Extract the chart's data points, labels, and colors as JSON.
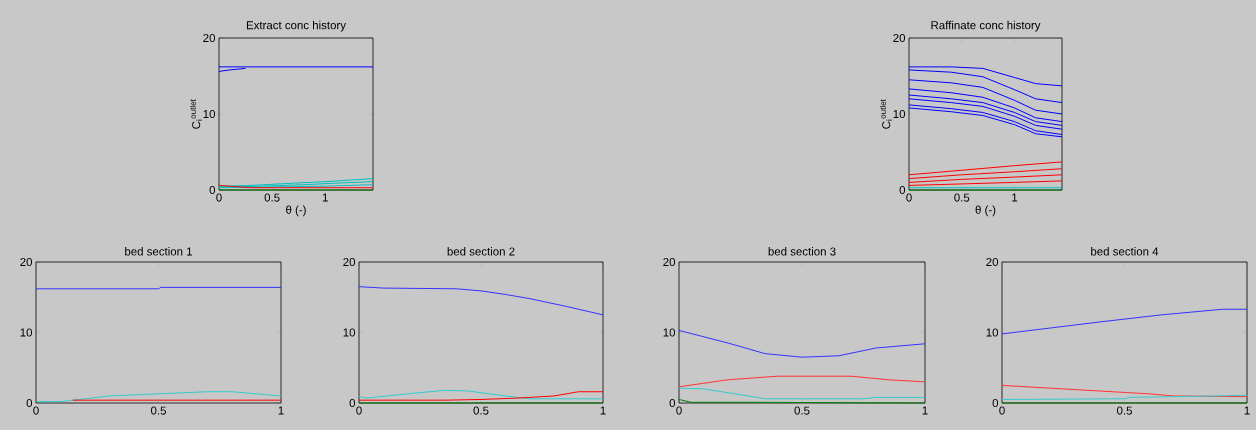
{
  "chart_data": [
    {
      "type": "line",
      "title": "Extract conc history",
      "xlabel": "θ (-)",
      "ylabel": "C$_{i}$$^{outlet}$",
      "xlim": [
        0,
        1.45
      ],
      "ylim": [
        0,
        20
      ],
      "xticks": [
        0,
        0.5,
        1
      ],
      "yticks": [
        0,
        10,
        20
      ],
      "series": [
        {
          "color": "#0000ff",
          "x": [
            0,
            0.3,
            1.45
          ],
          "values": [
            16.2,
            16.2,
            16.2
          ]
        },
        {
          "color": "#0000ff",
          "x": [
            0,
            0.1,
            0.25
          ],
          "values": [
            15.6,
            15.8,
            16.0
          ]
        },
        {
          "color": "#00bfbf",
          "x": [
            0,
            0.3,
            0.7,
            1.0,
            1.45
          ],
          "values": [
            0.5,
            0.6,
            0.9,
            1.1,
            1.5
          ]
        },
        {
          "color": "#00bfbf",
          "x": [
            0,
            0.4,
            0.8,
            1.1,
            1.45
          ],
          "values": [
            0.4,
            0.5,
            0.7,
            0.9,
            1.1
          ]
        },
        {
          "color": "#00bfbf",
          "x": [
            0,
            0.5,
            1.0,
            1.45
          ],
          "values": [
            0.3,
            0.4,
            0.5,
            0.7
          ]
        },
        {
          "color": "#ff0000",
          "x": [
            0,
            0.1,
            0.3,
            1.45
          ],
          "values": [
            0.6,
            0.5,
            0.3,
            0.3
          ]
        },
        {
          "color": "#008000",
          "x": [
            0,
            1.45
          ],
          "values": [
            0,
            0
          ]
        }
      ]
    },
    {
      "type": "line",
      "title": "Raffinate conc history",
      "xlabel": "θ (-)",
      "ylabel": "C$_{i}$$^{outlet}$",
      "xlim": [
        0,
        1.45
      ],
      "ylim": [
        0,
        20
      ],
      "xticks": [
        0,
        0.5,
        1
      ],
      "yticks": [
        0,
        10,
        20
      ],
      "series": [
        {
          "color": "#0000ff",
          "x": [
            0,
            0.4,
            0.7,
            1.0,
            1.2,
            1.45
          ],
          "values": [
            16.2,
            16.2,
            16.0,
            14.8,
            14.0,
            13.7
          ]
        },
        {
          "color": "#0000ff",
          "x": [
            0,
            0.4,
            0.7,
            1.0,
            1.2,
            1.45
          ],
          "values": [
            15.8,
            15.5,
            14.9,
            13.2,
            12.0,
            11.5
          ]
        },
        {
          "color": "#0000ff",
          "x": [
            0,
            0.4,
            0.7,
            1.0,
            1.2,
            1.45
          ],
          "values": [
            14.5,
            14.1,
            13.5,
            11.8,
            10.5,
            10.0
          ]
        },
        {
          "color": "#0000ff",
          "x": [
            0,
            0.4,
            0.7,
            1.0,
            1.2,
            1.45
          ],
          "values": [
            13.3,
            12.8,
            12.2,
            10.8,
            9.5,
            9.0
          ]
        },
        {
          "color": "#0000ff",
          "x": [
            0,
            0.4,
            0.7,
            1.0,
            1.2,
            1.45
          ],
          "values": [
            12.5,
            12.0,
            11.5,
            10.2,
            9.0,
            8.5
          ]
        },
        {
          "color": "#0000ff",
          "x": [
            0,
            0.4,
            0.7,
            1.0,
            1.2,
            1.45
          ],
          "values": [
            12.0,
            11.5,
            11.0,
            9.7,
            8.5,
            8.0
          ]
        },
        {
          "color": "#0000ff",
          "x": [
            0,
            0.4,
            0.7,
            1.0,
            1.2,
            1.45
          ],
          "values": [
            11.2,
            10.7,
            10.2,
            9.0,
            7.8,
            7.3
          ]
        },
        {
          "color": "#0000ff",
          "x": [
            0,
            0.4,
            0.7,
            1.0,
            1.2,
            1.45
          ],
          "values": [
            10.8,
            10.3,
            9.8,
            8.6,
            7.4,
            7.0
          ]
        },
        {
          "color": "#ff0000",
          "x": [
            0,
            0.5,
            1.0,
            1.45
          ],
          "values": [
            2.0,
            2.6,
            3.2,
            3.7
          ]
        },
        {
          "color": "#ff0000",
          "x": [
            0,
            0.5,
            1.0,
            1.45
          ],
          "values": [
            1.5,
            2.0,
            2.4,
            2.8
          ]
        },
        {
          "color": "#ff0000",
          "x": [
            0,
            0.5,
            1.0,
            1.45
          ],
          "values": [
            1.0,
            1.4,
            1.7,
            2.0
          ]
        },
        {
          "color": "#ff0000",
          "x": [
            0,
            0.5,
            1.0,
            1.45
          ],
          "values": [
            0.6,
            0.8,
            1.0,
            1.2
          ]
        },
        {
          "color": "#00bfbf",
          "x": [
            0,
            1.45
          ],
          "values": [
            0.3,
            0.3
          ]
        },
        {
          "color": "#008000",
          "x": [
            0,
            1.45
          ],
          "values": [
            0,
            0
          ]
        }
      ]
    },
    {
      "type": "line",
      "title": "bed section 1",
      "xlim": [
        0,
        1
      ],
      "ylim": [
        0,
        20
      ],
      "xticks": [
        0,
        0.5,
        1
      ],
      "yticks": [
        0,
        10,
        20
      ],
      "series": [
        {
          "color": "#3333ff",
          "x": [
            0,
            0.5,
            0.51,
            1
          ],
          "values": [
            16.2,
            16.2,
            16.4,
            16.4
          ]
        },
        {
          "color": "#33cccc",
          "x": [
            0,
            0.1,
            0.2,
            0.3,
            0.5,
            0.7,
            0.8,
            0.9,
            1
          ],
          "values": [
            0.2,
            0.2,
            0.6,
            1.0,
            1.3,
            1.6,
            1.6,
            1.3,
            1.0
          ]
        },
        {
          "color": "#ff0000",
          "x": [
            0.15,
            1
          ],
          "values": [
            0.4,
            0.4
          ]
        }
      ]
    },
    {
      "type": "line",
      "title": "bed section 2",
      "xlim": [
        0,
        1
      ],
      "ylim": [
        0,
        20
      ],
      "xticks": [
        0,
        0.5,
        1
      ],
      "yticks": [
        0,
        10,
        20
      ],
      "series": [
        {
          "color": "#3333ff",
          "x": [
            0,
            0.1,
            0.4,
            0.5,
            0.6,
            0.7,
            0.85,
            1
          ],
          "values": [
            16.5,
            16.3,
            16.2,
            15.9,
            15.4,
            14.8,
            13.7,
            12.5
          ]
        },
        {
          "color": "#33cccc",
          "x": [
            0,
            0.03,
            0.2,
            0.35,
            0.45,
            0.6,
            0.7,
            1
          ],
          "values": [
            0.9,
            0.7,
            1.3,
            1.8,
            1.7,
            1.0,
            0.6,
            0.6
          ]
        },
        {
          "color": "#ff0000",
          "x": [
            0,
            0.35,
            0.5,
            0.65,
            0.8,
            0.9,
            1
          ],
          "values": [
            0.4,
            0.4,
            0.5,
            0.7,
            1.0,
            1.6,
            1.6
          ]
        },
        {
          "color": "#008000",
          "x": [
            0,
            1
          ],
          "values": [
            0,
            0
          ]
        }
      ]
    },
    {
      "type": "line",
      "title": "bed section 3",
      "xlim": [
        0,
        1
      ],
      "ylim": [
        0,
        20
      ],
      "xticks": [
        0,
        0.5,
        1
      ],
      "yticks": [
        0,
        10,
        20
      ],
      "series": [
        {
          "color": "#3333ff",
          "x": [
            0,
            0.2,
            0.35,
            0.5,
            0.65,
            0.8,
            1
          ],
          "values": [
            10.3,
            8.5,
            7.0,
            6.5,
            6.7,
            7.8,
            8.4
          ]
        },
        {
          "color": "#ff3333",
          "x": [
            0,
            0.2,
            0.4,
            0.7,
            0.85,
            1
          ],
          "values": [
            2.3,
            3.3,
            3.8,
            3.8,
            3.3,
            3.0
          ]
        },
        {
          "color": "#33cccc",
          "x": [
            0,
            0.1,
            0.3,
            0.35,
            0.75,
            0.8,
            1
          ],
          "values": [
            2.1,
            2.0,
            0.9,
            0.6,
            0.6,
            0.8,
            0.8
          ]
        },
        {
          "color": "#008000",
          "x": [
            0,
            0.05,
            0.3,
            1
          ],
          "values": [
            0.5,
            0.1,
            0.1,
            0
          ]
        }
      ]
    },
    {
      "type": "line",
      "title": "bed section 4",
      "xlim": [
        0,
        1
      ],
      "ylim": [
        0,
        20
      ],
      "xticks": [
        0,
        0.5,
        1
      ],
      "yticks": [
        0,
        10,
        20
      ],
      "series": [
        {
          "color": "#3333ff",
          "x": [
            0,
            0.4,
            0.65,
            0.9,
            1
          ],
          "values": [
            9.8,
            11.5,
            12.5,
            13.3,
            13.3
          ]
        },
        {
          "color": "#ff3333",
          "x": [
            0,
            0.3,
            0.6,
            0.7,
            1
          ],
          "values": [
            2.5,
            1.9,
            1.3,
            1.0,
            0.9
          ]
        },
        {
          "color": "#33cccc",
          "x": [
            0,
            0.5,
            0.52,
            0.88,
            1
          ],
          "values": [
            0.5,
            0.6,
            0.8,
            1.0,
            1.1
          ]
        },
        {
          "color": "#008000",
          "x": [
            0,
            1
          ],
          "values": [
            0,
            0
          ]
        }
      ]
    }
  ]
}
